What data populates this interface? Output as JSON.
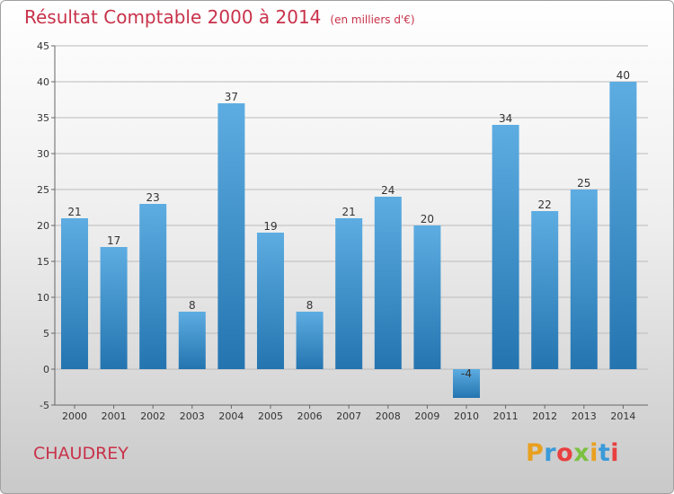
{
  "header": {
    "title": "Résultat Comptable 2000 à 2014",
    "subtitle": "(en milliers d'€)"
  },
  "footer": {
    "commune": "CHAUDREY",
    "logo": "Proxiti"
  },
  "colors": {
    "title": "#c8324a",
    "bar_light": "#5dade2",
    "bar_dark": "#2474b0",
    "grid": "#bbbbbb"
  },
  "chart_data": {
    "type": "bar",
    "title": "Résultat Comptable 2000 à 2014",
    "subtitle": "(en milliers d'€)",
    "categories": [
      "2000",
      "2001",
      "2002",
      "2003",
      "2004",
      "2005",
      "2006",
      "2007",
      "2008",
      "2009",
      "2010",
      "2011",
      "2012",
      "2013",
      "2014"
    ],
    "values": [
      21,
      17,
      23,
      8,
      37,
      19,
      8,
      21,
      24,
      20,
      -4,
      34,
      22,
      25,
      40
    ],
    "data_labels": [
      "21",
      "17",
      "23",
      "8",
      "37",
      "19",
      "8",
      "21",
      "24",
      "20",
      "-4",
      "34",
      "22",
      "25",
      "40"
    ],
    "ylim": [
      -5,
      45
    ],
    "yticks": [
      -5,
      0,
      5,
      10,
      15,
      20,
      25,
      30,
      35,
      40,
      45
    ],
    "grid": true,
    "legend": "none"
  }
}
